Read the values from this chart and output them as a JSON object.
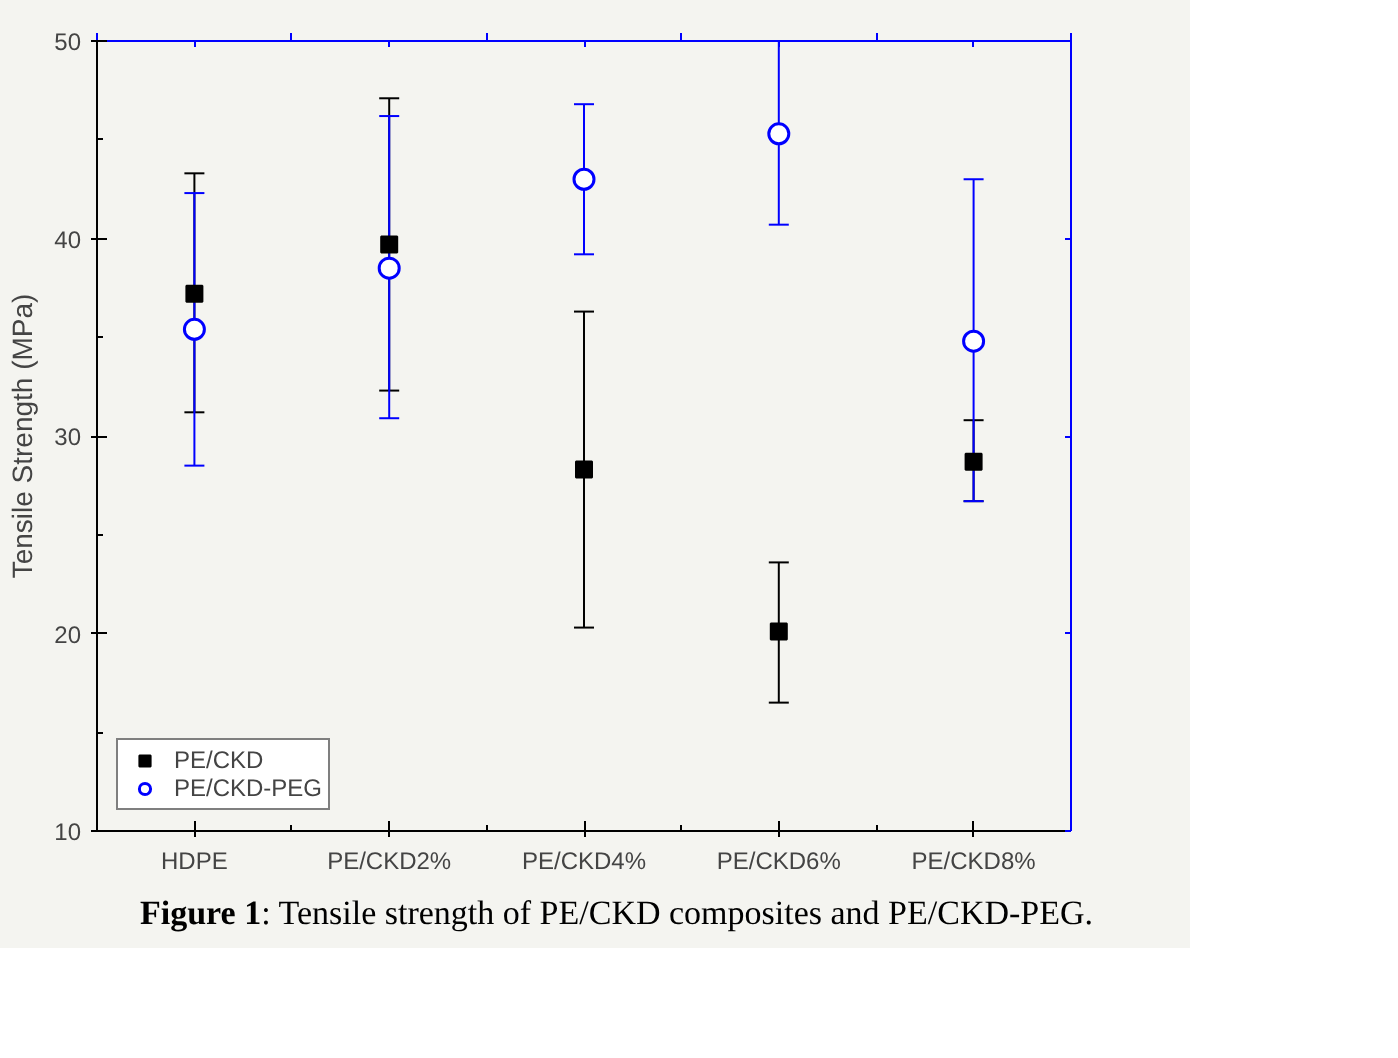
{
  "chart_data": {
    "type": "scatter",
    "categories": [
      "HDPE",
      "PE/CKD2%",
      "PE/CKD4%",
      "PE/CKD6%",
      "PE/CKD8%"
    ],
    "ylabel": "Tensile Strength (MPa)",
    "ylim": [
      10,
      50
    ],
    "yticks": [
      10,
      20,
      30,
      40,
      50
    ],
    "grid": false,
    "legend": "bottom left",
    "annotations": [
      "Figure 1: Tensile strength of PE/CKD composites and PE/CKD-PEG."
    ],
    "series": [
      {
        "name": "PE/CKD",
        "color": "#000000",
        "marker": "square",
        "values": [
          37.2,
          39.7,
          28.3,
          20.1,
          28.7
        ],
        "errors": [
          [
            31.2,
            43.3
          ],
          [
            32.3,
            47.1
          ],
          [
            20.3,
            36.3
          ],
          [
            16.5,
            23.6
          ],
          [
            26.7,
            30.8
          ]
        ]
      },
      {
        "name": "PE/CKD-PEG",
        "color": "#0000ff",
        "marker": "circle",
        "values": [
          35.4,
          38.5,
          43.0,
          45.3,
          34.8
        ],
        "errors": [
          [
            28.5,
            42.3
          ],
          [
            30.9,
            46.2
          ],
          [
            39.2,
            46.8
          ],
          [
            40.7,
            50.0
          ],
          [
            26.7,
            43.0
          ]
        ]
      }
    ]
  }
}
